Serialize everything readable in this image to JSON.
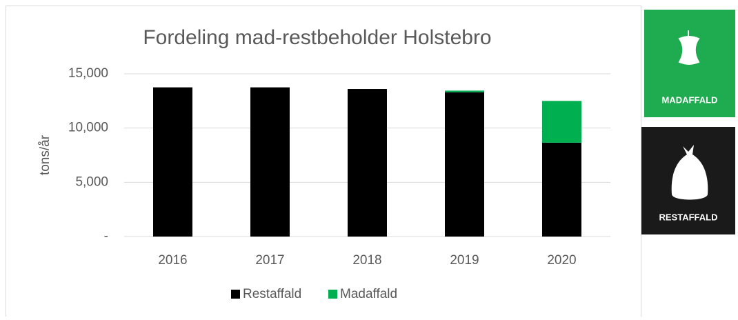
{
  "chart_data": {
    "type": "bar",
    "stacked": true,
    "title": "Fordeling mad-restbeholder Holstebro",
    "ylabel": "tons/år",
    "categories": [
      "2016",
      "2017",
      "2018",
      "2019",
      "2020"
    ],
    "series": [
      {
        "name": "Restaffald",
        "color": "#000000",
        "values": [
          13750,
          13750,
          13600,
          13300,
          8650
        ]
      },
      {
        "name": "Madaffald",
        "color": "#00b050",
        "values": [
          0,
          0,
          0,
          150,
          3850
        ]
      }
    ],
    "ylim": [
      0,
      15000
    ],
    "yticks": [
      {
        "value": 0,
        "label": "-"
      },
      {
        "value": 5000,
        "label": "5,000"
      },
      {
        "value": 10000,
        "label": "10,000"
      },
      {
        "value": 15000,
        "label": "15,000"
      }
    ],
    "grid": true,
    "legend": "bottom"
  },
  "tiles": [
    {
      "label": "MADAFFALD",
      "color": "#1fab4f"
    },
    {
      "label": "RESTAFFALD",
      "color": "#1a1a1a"
    }
  ]
}
